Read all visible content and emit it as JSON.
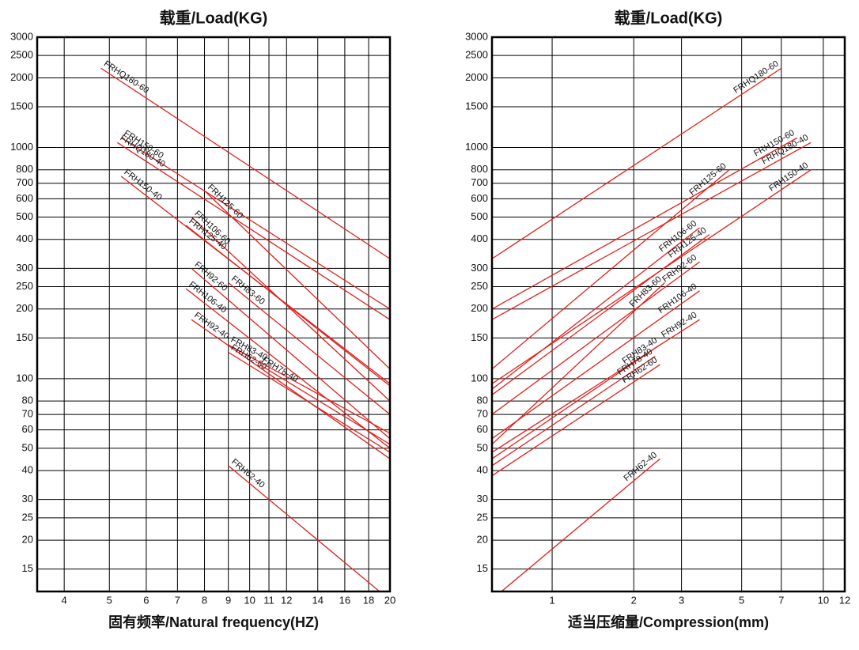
{
  "chart_data": [
    {
      "type": "line",
      "title": "载重/Load(KG)",
      "x_label": "固有频率/Natural frequency(HZ)",
      "log_x": true,
      "log_y": true,
      "grid": true,
      "color": "#e0201c",
      "label_at": "start",
      "xlim": [
        3.5,
        20
      ],
      "xticks": [
        4,
        5,
        6,
        7,
        8,
        9,
        10,
        11,
        12,
        14,
        16,
        18,
        20
      ],
      "ylim": [
        12,
        3000
      ],
      "yticks": [
        15,
        20,
        25,
        30,
        40,
        50,
        60,
        70,
        80,
        100,
        150,
        200,
        250,
        300,
        400,
        500,
        600,
        700,
        800,
        1000,
        1500,
        2000,
        2500,
        3000
      ],
      "series": [
        {
          "name": "FRHQ180-60",
          "x": [
            4.8,
            20
          ],
          "values": [
            2200,
            330
          ]
        },
        {
          "name": "FRH150-60",
          "x": [
            5.3,
            20
          ],
          "values": [
            1100,
            200
          ]
        },
        {
          "name": "FRHQ180-40",
          "x": [
            5.2,
            20
          ],
          "values": [
            1050,
            180
          ]
        },
        {
          "name": "FRH150-40",
          "x": [
            5.3,
            20
          ],
          "values": [
            750,
            95
          ]
        },
        {
          "name": "FRH125-60",
          "x": [
            8,
            20
          ],
          "values": [
            650,
            110
          ]
        },
        {
          "name": "FRH106-60",
          "x": [
            7.5,
            20
          ],
          "values": [
            500,
            80
          ]
        },
        {
          "name": "FRH125-40",
          "x": [
            7.3,
            20
          ],
          "values": [
            460,
            93
          ]
        },
        {
          "name": "FRH92-60",
          "x": [
            7.5,
            20
          ],
          "values": [
            300,
            55
          ]
        },
        {
          "name": "FRH83-60",
          "x": [
            9,
            20
          ],
          "values": [
            260,
            70
          ]
        },
        {
          "name": "FRH106-40",
          "x": [
            7.3,
            20
          ],
          "values": [
            245,
            50
          ]
        },
        {
          "name": "FRH92-40",
          "x": [
            7.5,
            20
          ],
          "values": [
            180,
            45
          ]
        },
        {
          "name": "FRH83-40",
          "x": [
            9,
            20
          ],
          "values": [
            140,
            58
          ]
        },
        {
          "name": "FRH62-60",
          "x": [
            9,
            20
          ],
          "values": [
            130,
            48
          ]
        },
        {
          "name": "FRH78-40",
          "x": [
            10.5,
            20
          ],
          "values": [
            115,
            52
          ]
        },
        {
          "name": "FRH62-40",
          "x": [
            9,
            19
          ],
          "values": [
            42,
            12
          ]
        }
      ]
    },
    {
      "type": "line",
      "title": "载重/Load(KG)",
      "x_label": "适当压缩量/Compression(mm)",
      "log_x": true,
      "log_y": true,
      "grid": true,
      "color": "#e0201c",
      "label_at": "end",
      "xlim": [
        0.6,
        12
      ],
      "xticks": [
        1,
        2,
        3,
        5,
        7,
        10,
        12
      ],
      "ylim": [
        12,
        3000
      ],
      "yticks": [
        15,
        20,
        25,
        30,
        40,
        50,
        60,
        70,
        80,
        100,
        150,
        200,
        250,
        300,
        400,
        500,
        600,
        700,
        800,
        1000,
        1500,
        2000,
        2500,
        3000
      ],
      "series": [
        {
          "name": "FRHQ180-60",
          "x": [
            0.6,
            7
          ],
          "values": [
            330,
            2200
          ]
        },
        {
          "name": "FRH150-60",
          "x": [
            0.6,
            8
          ],
          "values": [
            200,
            1100
          ]
        },
        {
          "name": "FRHQ180-40",
          "x": [
            0.6,
            9
          ],
          "values": [
            180,
            1050
          ]
        },
        {
          "name": "FRH125-60",
          "x": [
            0.6,
            4.5
          ],
          "values": [
            110,
            800
          ]
        },
        {
          "name": "FRH150-40",
          "x": [
            0.6,
            9
          ],
          "values": [
            95,
            800
          ]
        },
        {
          "name": "FRH106-60",
          "x": [
            0.6,
            3.5
          ],
          "values": [
            90,
            450
          ]
        },
        {
          "name": "FRH125-40",
          "x": [
            0.6,
            3.8
          ],
          "values": [
            85,
            420
          ]
        },
        {
          "name": "FRH92-60",
          "x": [
            0.6,
            3.5
          ],
          "values": [
            70,
            320
          ]
        },
        {
          "name": "FRH83-60",
          "x": [
            0.6,
            2.6
          ],
          "values": [
            52,
            260
          ]
        },
        {
          "name": "FRH106-40",
          "x": [
            0.6,
            3.5
          ],
          "values": [
            55,
            240
          ]
        },
        {
          "name": "FRH92-40",
          "x": [
            0.6,
            3.5
          ],
          "values": [
            48,
            180
          ]
        },
        {
          "name": "FRH83-40",
          "x": [
            0.6,
            2.5
          ],
          "values": [
            45,
            140
          ]
        },
        {
          "name": "FRH78-40",
          "x": [
            0.6,
            2.4
          ],
          "values": [
            42,
            125
          ]
        },
        {
          "name": "FRH62-60",
          "x": [
            0.6,
            2.5
          ],
          "values": [
            38,
            115
          ]
        },
        {
          "name": "FRH62-40",
          "x": [
            0.65,
            2.5
          ],
          "values": [
            12,
            45
          ]
        }
      ]
    }
  ]
}
